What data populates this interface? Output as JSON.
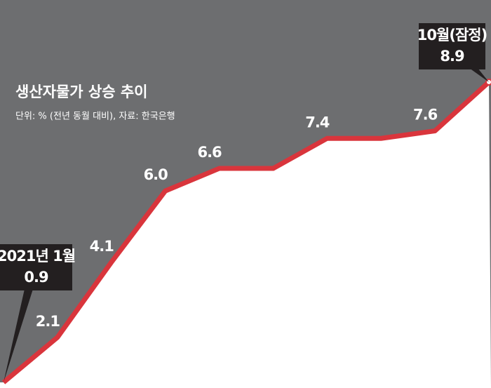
{
  "chart_data": {
    "type": "line",
    "title": "생산자물가 상승 추이",
    "subtitle": "단위: % (전년 동월 대비), 자료: 한국은행",
    "categories": [
      "2021년 1월",
      null,
      null,
      null,
      null,
      null,
      null,
      null,
      null,
      "10월(잠정)"
    ],
    "values": [
      0.9,
      2.1,
      4.1,
      6.0,
      6.6,
      6.6,
      7.4,
      7.4,
      7.6,
      8.9
    ],
    "value_labels": [
      "0.9",
      "2.1",
      "4.1",
      "6.0",
      "6.6",
      null,
      "7.4",
      null,
      "7.6",
      "8.9"
    ],
    "color": "#d9353c",
    "background": "#6d6e70"
  }
}
